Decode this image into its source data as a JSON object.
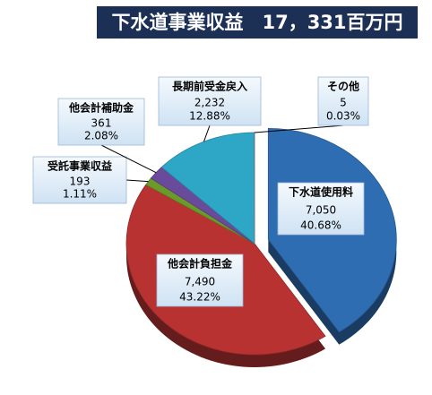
{
  "chart_data": {
    "type": "pie",
    "title": "下水道事業収益　17，331百万円",
    "categories": [
      "下水道使用料",
      "他会計負担金",
      "受託事業収益",
      "他会計補助金",
      "長期前受金戻入",
      "その他"
    ],
    "values": [
      7050,
      7490,
      193,
      361,
      2232,
      5
    ],
    "value_labels": [
      "7,050",
      "7,490",
      "193",
      "361",
      "2,232",
      "5"
    ],
    "percents": [
      40.68,
      43.22,
      1.11,
      2.08,
      12.88,
      0.03
    ],
    "percent_labels": [
      "40.68%",
      "43.22%",
      "1.11%",
      "2.08%",
      "12.88%",
      "0.03%"
    ],
    "colors": [
      "#2f6db3",
      "#b83232",
      "#6b9a2a",
      "#6a4a9a",
      "#2ea6c6",
      "#8a8a8a"
    ]
  }
}
